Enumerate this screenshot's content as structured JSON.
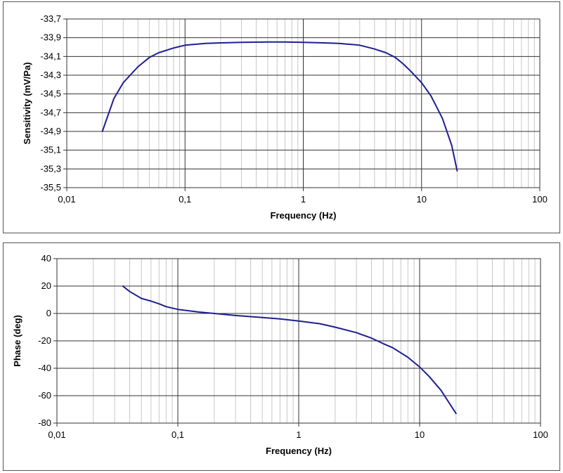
{
  "charts": {
    "sensitivity": {
      "xlabel": "Frequency (Hz)",
      "ylabel": "Sensitivity (mV/Pa)",
      "x_tick_labels": [
        "0,01",
        "0,1",
        "1",
        "10",
        "100"
      ],
      "y_tick_labels": [
        "-33,7",
        "-33,9",
        "-34,1",
        "-34,3",
        "-34,5",
        "-34,7",
        "-34,9",
        "-35,1",
        "-35,3",
        "-35,5"
      ]
    },
    "phase": {
      "xlabel": "Frequency (Hz)",
      "ylabel": "Phase (deg)",
      "x_tick_labels": [
        "0,01",
        "0,1",
        "1",
        "10",
        "100"
      ],
      "y_tick_labels": [
        "40",
        "20",
        "0",
        "-20",
        "-40",
        "-60",
        "-80"
      ]
    }
  },
  "chart_data": [
    {
      "type": "line",
      "title": "",
      "xlabel": "Frequency (Hz)",
      "ylabel": "Sensitivity (mV/Pa)",
      "x_scale": "log",
      "xlim": [
        0.01,
        100
      ],
      "ylim": [
        -35.5,
        -33.7
      ],
      "y_ticks": [
        -33.7,
        -33.9,
        -34.1,
        -34.3,
        -34.5,
        -34.7,
        -34.9,
        -35.1,
        -35.3,
        -35.5
      ],
      "grid": true,
      "line_color": "#1f1f8f",
      "series": [
        {
          "x": [
            0.02,
            0.025,
            0.03,
            0.04,
            0.05,
            0.06,
            0.08,
            0.1,
            0.15,
            0.2,
            0.3,
            0.5,
            0.7,
            1,
            1.5,
            2,
            3,
            4,
            5,
            6,
            7,
            8,
            10,
            12,
            15,
            18,
            20
          ],
          "y": [
            -34.9,
            -34.55,
            -34.38,
            -34.21,
            -34.11,
            -34.06,
            -34.01,
            -33.98,
            -33.96,
            -33.955,
            -33.95,
            -33.945,
            -33.945,
            -33.95,
            -33.955,
            -33.96,
            -33.98,
            -34.02,
            -34.06,
            -34.11,
            -34.18,
            -34.25,
            -34.38,
            -34.52,
            -34.76,
            -35.05,
            -35.32
          ]
        }
      ]
    },
    {
      "type": "line",
      "title": "",
      "xlabel": "Frequency (Hz)",
      "ylabel": "Phase (deg)",
      "x_scale": "log",
      "xlim": [
        0.01,
        100
      ],
      "ylim": [
        -80,
        40
      ],
      "y_ticks": [
        40,
        20,
        0,
        -20,
        -40,
        -60,
        -80
      ],
      "grid": true,
      "line_color": "#1f1f8f",
      "series": [
        {
          "x": [
            0.035,
            0.04,
            0.05,
            0.06,
            0.07,
            0.08,
            0.1,
            0.15,
            0.2,
            0.3,
            0.5,
            0.7,
            1,
            1.5,
            2,
            3,
            4,
            5,
            6,
            8,
            10,
            12,
            15,
            20
          ],
          "y": [
            20,
            16,
            11,
            9,
            7,
            5,
            3,
            1,
            0,
            -1.5,
            -3,
            -4,
            -5.5,
            -7.5,
            -10,
            -14,
            -18,
            -22,
            -25,
            -32,
            -39,
            -46,
            -56,
            -73
          ]
        }
      ]
    }
  ]
}
